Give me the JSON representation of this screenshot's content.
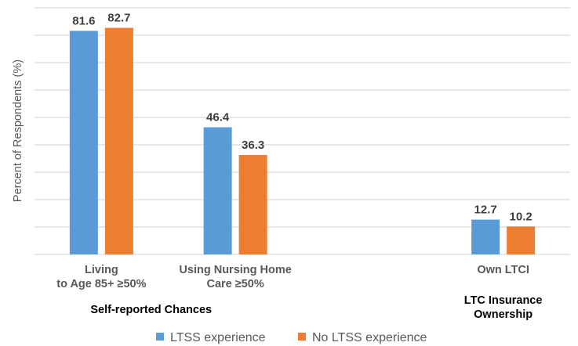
{
  "chart_data": {
    "type": "bar",
    "title": "",
    "ylabel": "Percent of Respondents (%)",
    "xlabel": "",
    "ylim": [
      0,
      90
    ],
    "y_gridline_step": 10,
    "y_tick_labels_shown": false,
    "grid": true,
    "legend_position": "bottom",
    "categories": [
      "Living\nto Age 85+ ≥50%",
      "Using Nursing Home\nCare ≥50%",
      "",
      "Own LTCI"
    ],
    "series": [
      {
        "name": "LTSS experience",
        "color": "#5B9BD5",
        "values": [
          81.6,
          46.4,
          null,
          12.7
        ]
      },
      {
        "name": "No LTSS experience",
        "color": "#ED7D31",
        "values": [
          82.7,
          36.3,
          null,
          10.2
        ]
      }
    ],
    "category_groups": [
      {
        "label": "Self-reported Chances",
        "categories": [
          0,
          1
        ]
      },
      {
        "label": "LTC Insurance\nOwnership",
        "categories": [
          3
        ]
      }
    ]
  }
}
